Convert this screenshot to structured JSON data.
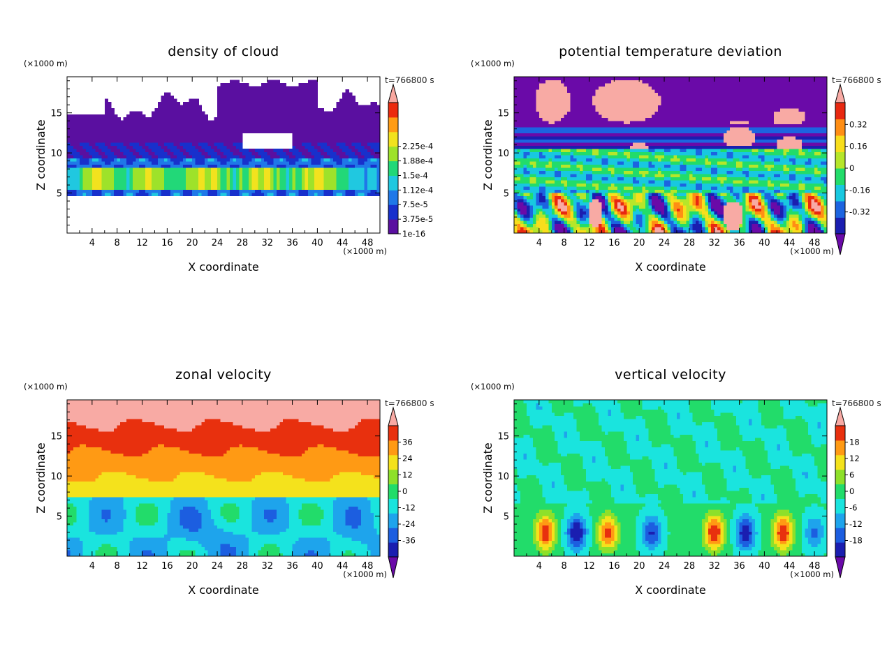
{
  "chart_data": [
    {
      "type": "heatmap",
      "title": "density of cloud",
      "xlabel": "X coordinate",
      "ylabel": "Z coordinate",
      "x_unit": "(×1000 m)",
      "y_unit": "(×1000 m)",
      "time_label": "t=766800 s",
      "xlim": [
        0,
        50
      ],
      "ylim": [
        0,
        19.5
      ],
      "x_ticks": [
        4,
        8,
        12,
        16,
        20,
        24,
        28,
        32,
        36,
        40,
        44,
        48
      ],
      "y_ticks": [
        5,
        10,
        15
      ],
      "colorbar": {
        "labels": [
          "1e-16",
          "3.75e-5",
          "7.5e-5",
          "1.12e-4",
          "1.5e-4",
          "1.88e-4",
          "2.25e-4"
        ],
        "colors": [
          "#5a0fa0",
          "#1830cc",
          "#1f78e8",
          "#20c8e0",
          "#22d878",
          "#9ee22a",
          "#f2e21e",
          "#ff9c14",
          "#ec2a0e",
          "#f8a8a0"
        ],
        "over_arrow": true,
        "under_arrow": false
      },
      "field": "cloud"
    },
    {
      "type": "heatmap",
      "title": "potential temperature deviation",
      "xlabel": "X coordinate",
      "ylabel": "Z coordinate",
      "x_unit": "(×1000 m)",
      "y_unit": "(×1000 m)",
      "time_label": "t=766800 s",
      "xlim": [
        0,
        50
      ],
      "ylim": [
        0,
        19.5
      ],
      "x_ticks": [
        4,
        8,
        12,
        16,
        20,
        24,
        28,
        32,
        36,
        40,
        44,
        48
      ],
      "y_ticks": [
        5,
        10,
        15
      ],
      "colorbar": {
        "labels": [
          "-0.32",
          "-0.16",
          "0",
          "0.16",
          "0.32"
        ],
        "colors": [
          "#6a0aa8",
          "#1a1eb0",
          "#1c64e0",
          "#18c8e0",
          "#22dc6a",
          "#b6e62a",
          "#f8de1c",
          "#ff8e14",
          "#e82810",
          "#f8aaa4"
        ],
        "over_arrow": true,
        "under_arrow": true
      },
      "field": "theta"
    },
    {
      "type": "heatmap",
      "title": "zonal velocity",
      "xlabel": "X coordinate",
      "ylabel": "Z coordinate",
      "x_unit": "(×1000 m)",
      "y_unit": "(×1000 m)",
      "time_label": "t=766800 s",
      "xlim": [
        0,
        50
      ],
      "ylim": [
        0,
        19.5
      ],
      "x_ticks": [
        4,
        8,
        12,
        16,
        20,
        24,
        28,
        32,
        36,
        40,
        44,
        48
      ],
      "y_ticks": [
        5,
        10,
        15
      ],
      "colorbar": {
        "labels": [
          "-36",
          "-24",
          "-12",
          "0",
          "12",
          "24",
          "36"
        ],
        "colors": [
          "#6a0aa8",
          "#1a1eb0",
          "#1c5ee0",
          "#1ea4ec",
          "#1ae4de",
          "#22dc6a",
          "#8ee02a",
          "#f4e21c",
          "#ff9a14",
          "#e8300e",
          "#f8aaa4"
        ],
        "over_arrow": true,
        "under_arrow": true
      },
      "field": "zonal"
    },
    {
      "type": "heatmap",
      "title": "vertical velocity",
      "xlabel": "X coordinate",
      "ylabel": "Z coordinate",
      "x_unit": "(×1000 m)",
      "y_unit": "(×1000 m)",
      "time_label": "t=766800 s",
      "xlim": [
        0,
        50
      ],
      "ylim": [
        0,
        19.5
      ],
      "x_ticks": [
        4,
        8,
        12,
        16,
        20,
        24,
        28,
        32,
        36,
        40,
        44,
        48
      ],
      "y_ticks": [
        5,
        10,
        15
      ],
      "colorbar": {
        "labels": [
          "-18",
          "-12",
          "-6",
          "0",
          "6",
          "12",
          "18"
        ],
        "colors": [
          "#6a0aa8",
          "#1a1eb0",
          "#1c5ee0",
          "#1ea4ec",
          "#1ae4de",
          "#22dc6a",
          "#8ee02a",
          "#f4e21c",
          "#ff9a14",
          "#e8300e",
          "#f8aaa4"
        ],
        "over_arrow": true,
        "under_arrow": true
      },
      "field": "vertical"
    }
  ]
}
